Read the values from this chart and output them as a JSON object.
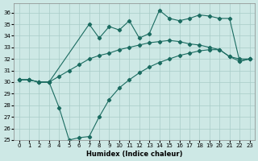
{
  "xlabel": "Humidex (Indice chaleur)",
  "xlim": [
    -0.5,
    23.5
  ],
  "ylim": [
    25,
    36.8
  ],
  "yticks": [
    25,
    26,
    27,
    28,
    29,
    30,
    31,
    32,
    33,
    34,
    35,
    36
  ],
  "xticks": [
    0,
    1,
    2,
    3,
    4,
    5,
    6,
    7,
    8,
    9,
    10,
    11,
    12,
    13,
    14,
    15,
    16,
    17,
    18,
    19,
    20,
    21,
    22,
    23
  ],
  "bg_color": "#cde8e5",
  "grid_color": "#a8ccc8",
  "line_color": "#1a6b60",
  "line1_x": [
    0,
    1,
    2,
    3,
    7,
    8,
    9,
    10,
    11,
    12,
    13,
    14,
    15,
    16,
    17,
    18,
    19,
    20,
    21,
    22,
    23
  ],
  "line1_y": [
    30.2,
    30.2,
    30.0,
    30.0,
    35.0,
    33.8,
    34.8,
    34.5,
    35.3,
    33.8,
    34.2,
    36.2,
    35.5,
    35.3,
    35.5,
    35.8,
    35.7,
    35.5,
    35.5,
    31.8,
    32.0
  ],
  "line2_x": [
    0,
    1,
    2,
    3,
    4,
    5,
    6,
    7,
    8,
    9,
    10,
    11,
    12,
    13,
    14,
    15,
    16,
    17,
    18,
    19,
    20,
    21,
    22,
    23
  ],
  "line2_y": [
    30.2,
    30.2,
    30.0,
    30.0,
    30.5,
    31.0,
    31.5,
    32.0,
    32.3,
    32.5,
    32.8,
    33.0,
    33.2,
    33.4,
    33.5,
    33.6,
    33.5,
    33.3,
    33.2,
    33.0,
    32.8,
    32.2,
    32.0,
    32.0
  ],
  "line3_x": [
    0,
    1,
    2,
    3,
    4,
    5,
    6,
    7,
    8,
    9,
    10,
    11,
    12,
    13,
    14,
    15,
    16,
    17,
    18,
    19,
    20,
    21,
    22,
    23
  ],
  "line3_y": [
    30.2,
    30.2,
    30.0,
    30.0,
    27.8,
    25.0,
    25.2,
    25.3,
    27.0,
    28.5,
    29.5,
    30.2,
    30.8,
    31.3,
    31.7,
    32.0,
    32.3,
    32.5,
    32.7,
    32.8,
    32.8,
    32.2,
    31.8,
    32.0
  ]
}
